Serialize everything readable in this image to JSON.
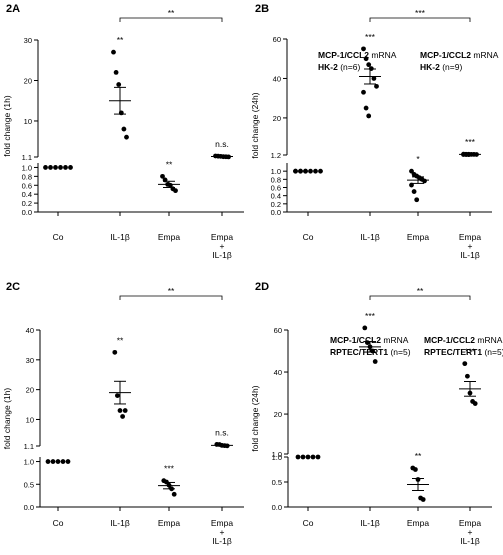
{
  "chart_data": [
    {
      "type": "scatter",
      "panel_label": "2A",
      "ylabel": "fold change (1h)",
      "title_bold": "MCP-1/CCL2",
      "title_rest": " mRNA",
      "subtitle_bold": "HK-2",
      "subtitle_rest": " (n=6)",
      "categories": [
        "Co",
        "IL-1β",
        "Empa",
        "Empa\n+\nIL-1β"
      ],
      "lower_axis": {
        "ylim": [
          0,
          1.1
        ],
        "ticks": [
          "0.0",
          "0.2",
          "0.4",
          "0.6",
          "0.8",
          "1.0"
        ]
      },
      "upper_axis": {
        "ylim": [
          1.1,
          30
        ],
        "ticks": [
          "1.1",
          "10",
          "20",
          "30"
        ]
      },
      "significance": [
        "",
        "**",
        "**",
        "n.s."
      ],
      "bracket": {
        "from": "IL-1β",
        "to": "Empa\n+\nIL-1β",
        "label": "**"
      },
      "means": [
        1.0,
        15.0,
        0.62,
        1.22
      ],
      "sem": [
        0.0,
        3.3,
        0.07,
        0.05
      ],
      "points": [
        [
          1.0,
          1.0,
          1.0,
          1.0,
          1.0,
          1.0
        ],
        [
          27.0,
          22.0,
          19.0,
          12.0,
          8.0,
          6.0
        ],
        [
          0.8,
          0.72,
          0.62,
          0.6,
          0.52,
          0.48
        ],
        [
          1.35,
          1.3,
          1.26,
          1.18,
          1.16,
          1.13
        ]
      ]
    },
    {
      "type": "scatter",
      "panel_label": "2B",
      "ylabel": "fold change (24h)",
      "title_bold": "MCP-1/CCL2",
      "title_rest": " mRNA",
      "subtitle_bold": "HK-2",
      "subtitle_rest": " (n=9)",
      "categories": [
        "Co",
        "IL-1β",
        "Empa",
        "Empa\n+\nIL-1β"
      ],
      "lower_axis": {
        "ylim": [
          0,
          1.2
        ],
        "ticks": [
          "0.0",
          "0.2",
          "0.4",
          "0.6",
          "0.8",
          "1.0"
        ]
      },
      "upper_axis": {
        "ylim": [
          1.2,
          60
        ],
        "ticks": [
          "1.2",
          "20",
          "40",
          "60"
        ]
      },
      "significance": [
        "",
        "***",
        "*",
        "***"
      ],
      "bracket": {
        "from": "IL-1β",
        "to": "Empa\n+\nIL-1β",
        "label": "***"
      },
      "means": [
        1.0,
        41.0,
        0.78,
        1.5
      ],
      "sem": [
        0.0,
        3.8,
        0.08,
        0.04
      ],
      "points": [
        [
          1.0,
          1.0,
          1.0,
          1.0,
          1.0,
          1.0,
          1.0,
          1.0,
          1.0
        ],
        [
          55.0,
          50.0,
          47.0,
          45.0,
          40.0,
          36.0,
          33.0,
          25.0,
          21.0
        ],
        [
          1.0,
          0.92,
          0.88,
          0.84,
          0.8,
          0.76,
          0.66,
          0.5,
          0.3
        ],
        [
          1.62,
          1.58,
          1.55,
          1.52,
          1.5,
          1.47,
          1.44,
          1.41,
          1.38
        ]
      ]
    },
    {
      "type": "scatter",
      "panel_label": "2C",
      "ylabel": "fold change (1h)",
      "title_bold": "MCP-1/CCL2",
      "title_rest": " mRNA",
      "subtitle_bold": "RPTEC/TERT1",
      "subtitle_rest": " (n=5)",
      "categories": [
        "Co",
        "IL-1β",
        "Empa",
        "Empa\n+\nIL-1β"
      ],
      "lower_axis": {
        "ylim": [
          0,
          1.1
        ],
        "ticks": [
          "0.0",
          "0.5",
          "1.0"
        ]
      },
      "upper_axis": {
        "ylim": [
          1.1,
          40
        ],
        "ticks": [
          "1.1",
          "10",
          "20",
          "30",
          "40"
        ]
      },
      "significance": [
        "",
        "**",
        "***",
        "n.s."
      ],
      "bracket": {
        "from": "IL-1β",
        "to": "Empa\n+\nIL-1β",
        "label": "**"
      },
      "means": [
        1.0,
        19.0,
        0.47,
        1.32
      ],
      "sem": [
        0.0,
        3.8,
        0.07,
        0.11
      ],
      "points": [
        [
          1.0,
          1.0,
          1.0,
          1.0,
          1.0
        ],
        [
          32.5,
          18.0,
          13.0,
          11.0,
          13.0
        ],
        [
          0.58,
          0.55,
          0.48,
          0.4,
          0.28
        ],
        [
          1.62,
          1.6,
          1.3,
          1.22,
          1.15
        ]
      ]
    },
    {
      "type": "scatter",
      "panel_label": "2D",
      "ylabel": "fold change (24h)",
      "title_bold": "MCP-1/CCL2",
      "title_rest": " mRNA",
      "subtitle_bold": "RPTEC/TERT1",
      "subtitle_rest": " (n=5)",
      "categories": [
        "Co",
        "IL-1β",
        "Empa",
        "Empa\n+\nIL-1β"
      ],
      "lower_axis": {
        "ylim": [
          0,
          1.0
        ],
        "ticks": [
          "0.0",
          "0.5",
          "1.0"
        ]
      },
      "upper_axis": {
        "ylim": [
          1.0,
          60
        ],
        "ticks": [
          "1.0",
          "20",
          "40",
          "60"
        ]
      },
      "significance": [
        "",
        "***",
        "**",
        "***"
      ],
      "bracket": {
        "from": "IL-1β",
        "to": "Empa\n+\nIL-1β",
        "label": "**"
      },
      "means": [
        1.0,
        52.0,
        0.45,
        32.0
      ],
      "sem": [
        0.0,
        2.5,
        0.12,
        3.5
      ],
      "points": [
        [
          1.0,
          1.0,
          1.0,
          1.0,
          1.0
        ],
        [
          61.0,
          54.0,
          52.0,
          50.0,
          45.0
        ],
        [
          0.78,
          0.75,
          0.55,
          0.18,
          0.15
        ],
        [
          44.0,
          38.0,
          30.0,
          26.0,
          25.0
        ]
      ]
    }
  ]
}
